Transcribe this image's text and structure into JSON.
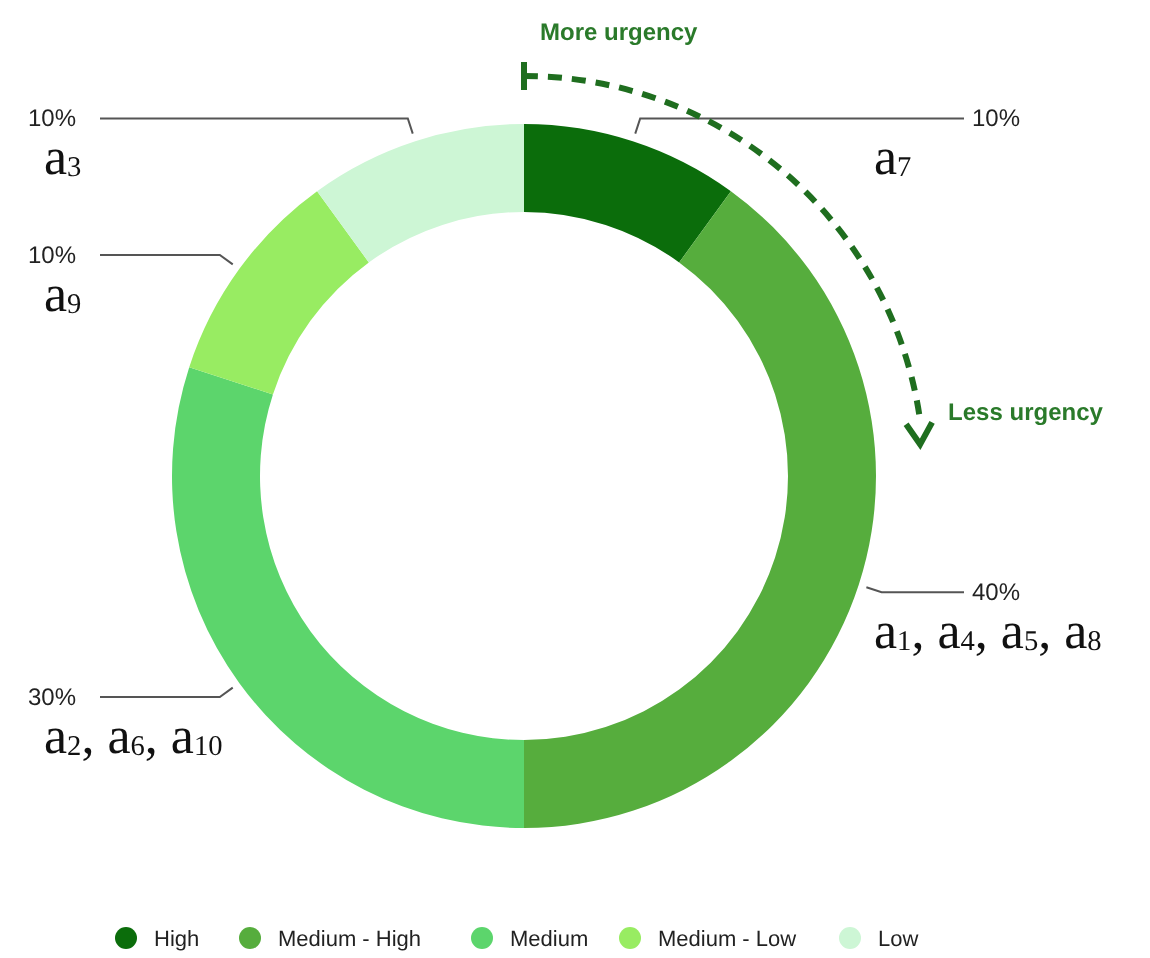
{
  "chart_data": {
    "type": "donut",
    "categories": [
      "High",
      "Medium - High",
      "Medium",
      "Medium - Low",
      "Low"
    ],
    "values": [
      10,
      40,
      30,
      10,
      10
    ],
    "colors": [
      "#0b6d0b",
      "#56ad3d",
      "#5cd56c",
      "#98ec62",
      "#cdf6d5"
    ],
    "value_labels": [
      "10%",
      "40%",
      "30%",
      "10%",
      "10%"
    ],
    "annotations": [
      {
        "text": "a$_{7}$",
        "x": "High"
      },
      {
        "text": "a$_{1}$, a$_{4}$, a$_{5}$, a$_{8}$",
        "x": "Medium - High"
      },
      {
        "text": "a$_{2}$, a$_{6}$, a$_{10}$",
        "x": "Medium"
      },
      {
        "text": "a$_{9}$",
        "x": "Medium - Low"
      },
      {
        "text": "a$_{3}$",
        "x": "Low"
      },
      "More urgency",
      "Less urgency"
    ],
    "legend": "bottom"
  }
}
